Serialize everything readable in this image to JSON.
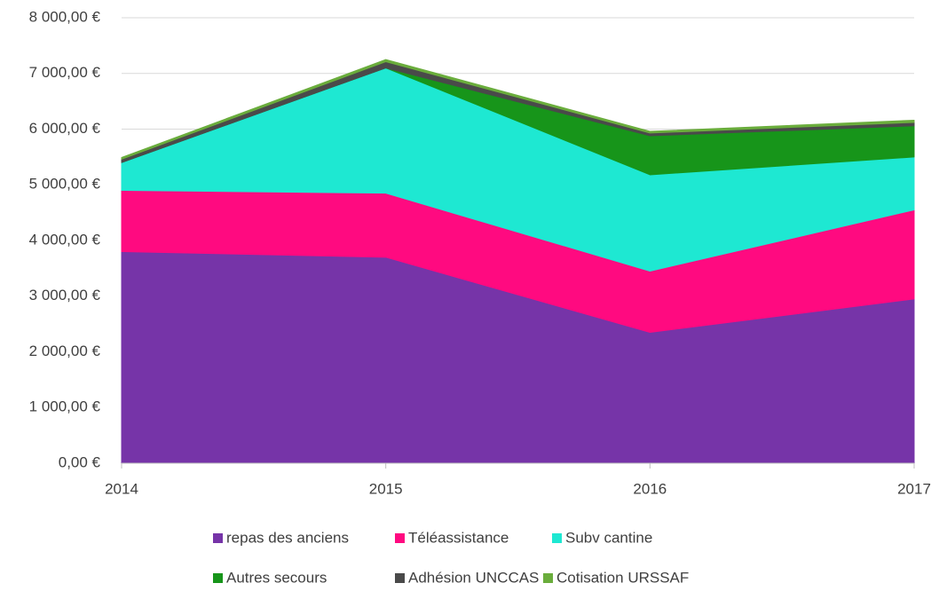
{
  "chart_data": {
    "type": "stacked_area",
    "categories": [
      "2014",
      "2015",
      "2016",
      "2017"
    ],
    "series": [
      {
        "name": "repas des anciens",
        "color": "#7634a8",
        "values": [
          3800,
          3700,
          2350,
          2950
        ]
      },
      {
        "name": "Téléassistance",
        "color": "#ff0a80",
        "values": [
          1100,
          1150,
          1100,
          1600
        ]
      },
      {
        "name": "Subv cantine",
        "color": "#1ee8d2",
        "values": [
          500,
          2250,
          1730,
          950
        ]
      },
      {
        "name": "Autres secours",
        "color": "#17951a",
        "values": [
          0,
          0,
          700,
          560
        ]
      },
      {
        "name": "Adhésion UNCCAS",
        "color": "#4a4a4a",
        "values": [
          60,
          110,
          50,
          60
        ]
      },
      {
        "name": "Cotisation URSSAF",
        "color": "#6aad3c",
        "values": [
          30,
          40,
          30,
          40
        ]
      }
    ],
    "ylim": [
      0,
      8000
    ],
    "yticks": [
      {
        "value": 0,
        "label": "0,00 €"
      },
      {
        "value": 1000,
        "label": "1 000,00 €"
      },
      {
        "value": 2000,
        "label": "2 000,00 €"
      },
      {
        "value": 3000,
        "label": "3 000,00 €"
      },
      {
        "value": 4000,
        "label": "4 000,00 €"
      },
      {
        "value": 5000,
        "label": "5 000,00 €"
      },
      {
        "value": 6000,
        "label": "6 000,00 €"
      },
      {
        "value": 7000,
        "label": "7 000,00 €"
      },
      {
        "value": 8000,
        "label": "8 000,00 €"
      }
    ],
    "grid": true,
    "legend": "bottom"
  }
}
